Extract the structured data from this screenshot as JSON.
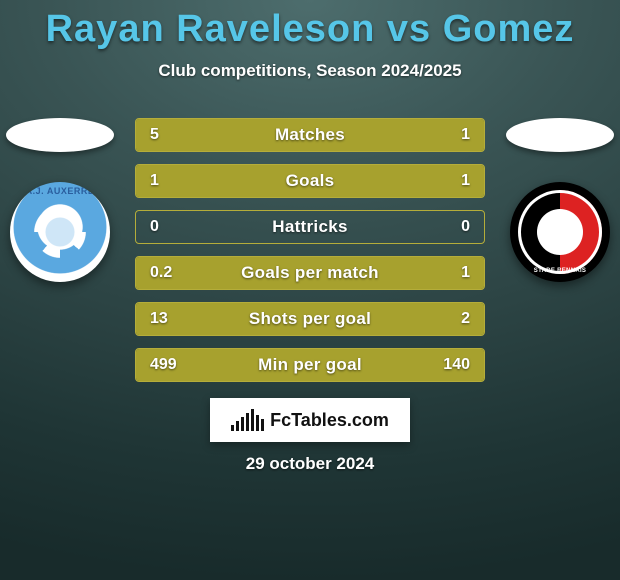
{
  "title": "Rayan Raveleson vs Gomez",
  "title_color": "#56c6e8",
  "subtitle": "Club competitions, Season 2024/2025",
  "date": "29 october 2024",
  "brand": "FcTables.com",
  "brand_bar_heights": [
    6,
    10,
    14,
    18,
    22,
    16,
    12
  ],
  "bar_fill_color": "#a7a12e",
  "bar_border_color": "#b5ad3a",
  "bar_track_color": "transparent",
  "left": {
    "country_flag_bg": "#ffffff",
    "club_badge_label": "A.J. AUXERRE"
  },
  "right": {
    "country_flag_bg": "#ffffff",
    "club_badge_label": "STADE RENNAIS"
  },
  "stats": [
    {
      "label": "Matches",
      "left_val": "5",
      "right_val": "1",
      "left_pct": 83,
      "right_pct": 17
    },
    {
      "label": "Goals",
      "left_val": "1",
      "right_val": "1",
      "left_pct": 50,
      "right_pct": 50
    },
    {
      "label": "Hattricks",
      "left_val": "0",
      "right_val": "0",
      "left_pct": 0,
      "right_pct": 0
    },
    {
      "label": "Goals per match",
      "left_val": "0.2",
      "right_val": "1",
      "left_pct": 17,
      "right_pct": 83
    },
    {
      "label": "Shots per goal",
      "left_val": "13",
      "right_val": "2",
      "left_pct": 87,
      "right_pct": 13
    },
    {
      "label": "Min per goal",
      "left_val": "499",
      "right_val": "140",
      "left_pct": 78,
      "right_pct": 22
    }
  ]
}
